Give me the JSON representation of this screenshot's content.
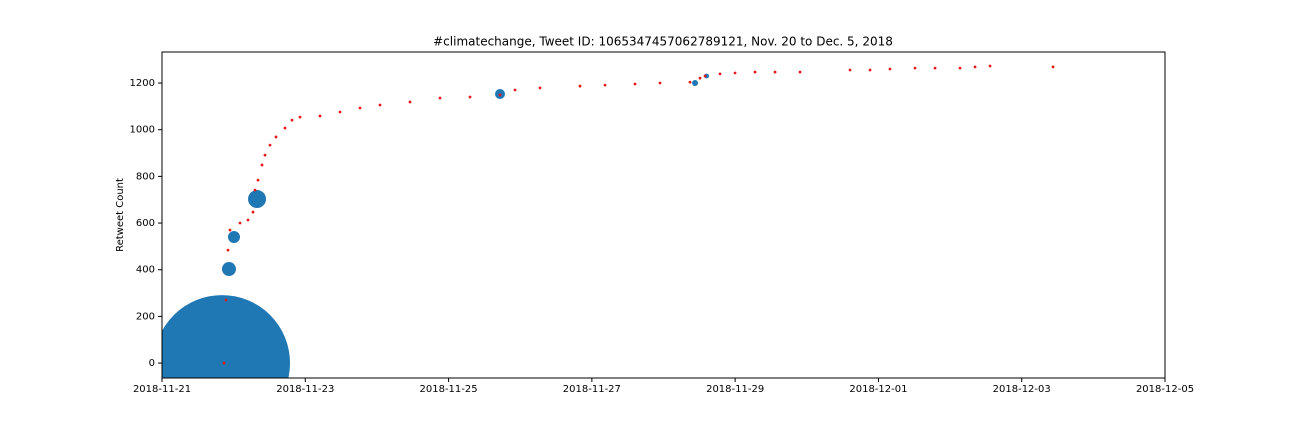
{
  "chart_data": {
    "type": "scatter",
    "title": "#climatechange, Tweet ID: 1065347457062789121, Nov. 20 to Dec. 5, 2018",
    "ylabel": "Retweet Count",
    "xlim": [
      "2018-11-21",
      "2018-12-05"
    ],
    "xticks": [
      "2018-11-21",
      "2018-11-23",
      "2018-11-25",
      "2018-11-27",
      "2018-11-29",
      "2018-12-01",
      "2018-12-03",
      "2018-12-05"
    ],
    "ylim": [
      -64,
      1333
    ],
    "yticks": [
      0,
      200,
      400,
      600,
      800,
      1000,
      1200
    ],
    "series": [
      {
        "color": "#1f77b4",
        "x": [
          "2018-11-21T20:06",
          "2018-11-21T22:26",
          "2018-11-22T00:07",
          "2018-11-22T07:50",
          "2018-11-25T17:14",
          "2018-11-28T10:34",
          "2018-11-28T14:25"
        ],
        "values": [
          0,
          403,
          540,
          703,
          1153,
          1200,
          1230
        ],
        "sizes": [
          4624,
          49,
          36,
          81,
          25,
          9,
          6
        ]
      },
      {
        "color": "#e41a1c",
        "x": [
          "2018-11-21T20:46",
          "2018-11-21T21:26",
          "2018-11-21T22:07",
          "2018-11-21T22:47",
          "2018-11-22T02:08",
          "2018-11-22T04:49",
          "2018-11-22T06:29",
          "2018-11-22T07:09",
          "2018-11-22T08:10",
          "2018-11-22T09:30",
          "2018-11-22T10:30",
          "2018-11-22T12:11",
          "2018-11-22T14:11",
          "2018-11-22T17:12",
          "2018-11-22T19:33",
          "2018-11-22T22:14",
          "2018-11-23T04:56",
          "2018-11-23T11:38",
          "2018-11-23T18:20",
          "2018-11-24T01:02",
          "2018-11-24T11:05",
          "2018-11-24T21:08",
          "2018-11-25T07:11",
          "2018-11-25T17:14",
          "2018-11-25T22:16",
          "2018-11-26T06:38",
          "2018-11-26T20:02",
          "2018-11-27T04:25",
          "2018-11-27T14:28",
          "2018-11-27T22:50",
          "2018-11-28T08:53",
          "2018-11-28T12:14",
          "2018-11-28T13:55",
          "2018-11-28T18:56",
          "2018-11-28T23:58",
          "2018-11-29T06:40",
          "2018-11-29T13:22",
          "2018-11-29T21:44",
          "2018-11-30T14:29",
          "2018-11-30T21:11",
          "2018-12-01T03:53",
          "2018-12-01T12:16",
          "2018-12-01T18:58",
          "2018-12-02T03:20",
          "2018-12-02T08:22",
          "2018-12-02T13:23",
          "2018-12-03T10:30"
        ],
        "values": [
          0,
          270,
          484,
          570,
          600,
          613,
          647,
          741,
          784,
          849,
          891,
          934,
          969,
          1007,
          1041,
          1054,
          1059,
          1076,
          1093,
          1106,
          1119,
          1136,
          1140,
          1149,
          1170,
          1179,
          1187,
          1191,
          1196,
          1200,
          1204,
          1221,
          1230,
          1239,
          1243,
          1247,
          1247,
          1247,
          1256,
          1256,
          1260,
          1264,
          1264,
          1264,
          1269,
          1273,
          1269
        ]
      }
    ]
  }
}
